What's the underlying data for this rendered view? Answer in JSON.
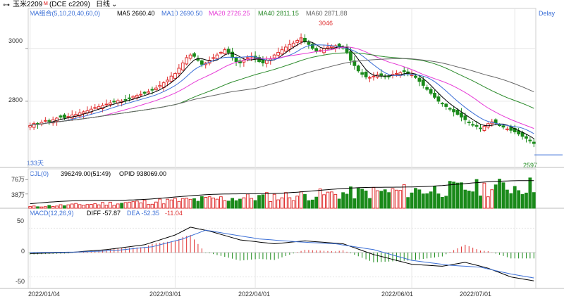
{
  "header": {
    "symbol_text": "玉米2209",
    "symbol_sup": "M",
    "contract_text": "(DCE c2209)",
    "period_text": "日线",
    "delay_text": "Delay",
    "link_icon": "chain-link-icon",
    "dropdown_icon": "chevron-down-icon"
  },
  "ma_legend": {
    "group": "MA组合(5,10,20,40,60,0)",
    "items": [
      {
        "label": "MA5",
        "value": "2660.40",
        "color": "#000000"
      },
      {
        "label": "MA10",
        "value": "2690.50",
        "color": "#3b6fd6"
      },
      {
        "label": "MA20",
        "value": "2726.25",
        "color": "#e63ad6"
      },
      {
        "label": "MA40",
        "value": "2811.15",
        "color": "#2a8a2a"
      },
      {
        "label": "MA60",
        "value": "2871.88",
        "color": "#666666"
      }
    ]
  },
  "vol_legend": {
    "group": "CJL(0)",
    "vol": "396249.00(51:49)",
    "opid": "OPID 938069.00"
  },
  "macd_legend": {
    "group": "MACD(12,26,9)",
    "diff": "DIFF -57.87",
    "dea": "DEA -52.35",
    "macd": "-11.04",
    "diff_color": "#000000",
    "dea_color": "#3b6fd6",
    "macd_color": "#e03030"
  },
  "annotations": {
    "high": "3046",
    "low": "2597",
    "days": "133天"
  },
  "colors": {
    "up": "#e03030",
    "down": "#1a8a1a",
    "grid": "#e6e6e6"
  },
  "chart_data": [
    {
      "type": "candlestick",
      "title": "玉米2209 (DCE c2209) 日线",
      "y_axis_ticks": [
        "3000",
        "2800"
      ],
      "ylim": [
        2560,
        3130
      ],
      "x_tick_labels": [
        "2022/01/04",
        "2022/03/01",
        "2022/04/01",
        "2022/06/01",
        "2022/07/01"
      ],
      "x_tick_index": [
        0,
        38,
        59,
        100,
        127
      ],
      "bar_count": 133,
      "ma_close": [
        2708,
        2716,
        2712,
        2720,
        2727,
        2724,
        2730,
        2736,
        2740,
        2738,
        2742,
        2748,
        2750,
        2756,
        2760,
        2764,
        2770,
        2776,
        2780,
        2784,
        2789,
        2794,
        2798,
        2802,
        2800,
        2806,
        2812,
        2818,
        2822,
        2826,
        2830,
        2836,
        2842,
        2850,
        2860,
        2870,
        2880,
        2895,
        2905,
        2925,
        2945,
        2965,
        2975,
        2970,
        2955,
        2940,
        2945,
        2955,
        2965,
        2975,
        2985,
        2995,
        2985,
        2965,
        2950,
        2945,
        2955,
        2965,
        2970,
        2960,
        2950,
        2945,
        2955,
        2960,
        2975,
        2985,
        2995,
        3005,
        3015,
        3020,
        3030,
        3040,
        3025,
        3015,
        3000,
        2990,
        2992,
        3000,
        3005,
        3008,
        3010,
        3008,
        3002,
        2985,
        2955,
        2935,
        2915,
        2902,
        2892,
        2890,
        2895,
        2900,
        2898,
        2895,
        2892,
        2902,
        2905,
        2908,
        2912,
        2905,
        2900,
        2890,
        2875,
        2860,
        2845,
        2830,
        2815,
        2800,
        2790,
        2780,
        2770,
        2760,
        2750,
        2740,
        2730,
        2720,
        2712,
        2705,
        2698,
        2705,
        2715,
        2722,
        2718,
        2710,
        2702,
        2695,
        2690,
        2684,
        2676,
        2667,
        2660,
        2650,
        2640
      ],
      "series": [
        {
          "name": "MA5",
          "value": 2660.4,
          "color": "#000000"
        },
        {
          "name": "MA10",
          "value": 2690.5,
          "color": "#3b6fd6"
        },
        {
          "name": "MA20",
          "value": 2726.25,
          "color": "#e63ad6"
        },
        {
          "name": "MA40",
          "value": 2811.15,
          "color": "#2a8a2a"
        },
        {
          "name": "MA60",
          "value": 2871.88,
          "color": "#666666"
        }
      ],
      "high_label": 3046,
      "low_label": 2597
    },
    {
      "type": "bar",
      "title": "CJL(0)",
      "y_axis_ticks": [
        "76万",
        "38万"
      ],
      "y_tick_values": [
        760000,
        380000
      ],
      "ylim": [
        0,
        860000
      ],
      "last_volume": 396249,
      "open_interest": 938069
    },
    {
      "type": "line",
      "title": "MACD(12,26,9)",
      "y_axis_ticks": [
        "50",
        "0",
        "-50"
      ],
      "y_tick_values": [
        50,
        0,
        -50
      ],
      "ylim": [
        -62,
        62
      ],
      "series": [
        {
          "name": "DIFF",
          "value": -57.87,
          "color": "#000000",
          "keypoints": [
            [
              0,
              -2
            ],
            [
              10,
              0
            ],
            [
              20,
              6
            ],
            [
              30,
              16
            ],
            [
              38,
              36
            ],
            [
              42,
              52
            ],
            [
              47,
              44
            ],
            [
              55,
              26
            ],
            [
              64,
              18
            ],
            [
              72,
              24
            ],
            [
              82,
              18
            ],
            [
              90,
              -4
            ],
            [
              100,
              -24
            ],
            [
              108,
              -28
            ],
            [
              114,
              -20
            ],
            [
              120,
              -32
            ],
            [
              126,
              -50
            ],
            [
              132,
              -58
            ]
          ]
        },
        {
          "name": "DEA",
          "value": -52.35,
          "color": "#3b6fd6",
          "keypoints": [
            [
              0,
              0
            ],
            [
              12,
              1
            ],
            [
              22,
              4
            ],
            [
              32,
              12
            ],
            [
              40,
              28
            ],
            [
              46,
              46
            ],
            [
              52,
              38
            ],
            [
              60,
              28
            ],
            [
              70,
              22
            ],
            [
              80,
              18
            ],
            [
              90,
              6
            ],
            [
              100,
              -16
            ],
            [
              110,
              -26
            ],
            [
              118,
              -30
            ],
            [
              126,
              -44
            ],
            [
              132,
              -52
            ]
          ]
        }
      ],
      "macd_value": -11.04
    }
  ]
}
